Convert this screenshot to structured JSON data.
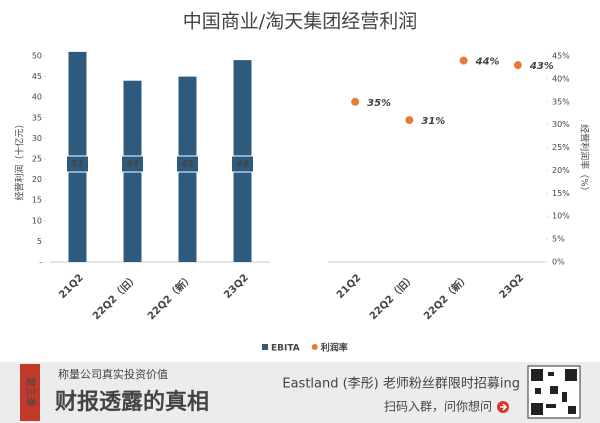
{
  "chart_data": [
    {
      "type": "bar",
      "title": "中国商业/淘天集团经营利润",
      "y_label": "经营利润（十亿元）",
      "categories": [
        "21Q2",
        "22Q2（旧）",
        "22Q2（新）",
        "23Q2"
      ],
      "series": [
        {
          "name": "EBITA",
          "color": "#2e5a7e",
          "values": [
            51,
            44,
            45,
            49
          ]
        }
      ],
      "ylim": [
        0,
        50
      ],
      "yticks": [
        {
          "value": 0,
          "label": "-"
        },
        5,
        10,
        15,
        20,
        25,
        30,
        35,
        40,
        45,
        50
      ]
    },
    {
      "type": "scatter",
      "y_label": "经营利润率（%）",
      "categories": [
        "21Q2",
        "22Q2（旧）",
        "22Q2（新）",
        "23Q2"
      ],
      "series": [
        {
          "name": "利润率",
          "color": "#e57c35",
          "values": [
            35,
            31,
            44,
            43
          ],
          "value_labels": [
            "35%",
            "31%",
            "44%",
            "43%"
          ]
        }
      ],
      "ylim": [
        0,
        45
      ],
      "yticks": [
        {
          "value": 0,
          "label": "0%"
        },
        {
          "value": 5,
          "label": "5%"
        },
        {
          "value": 10,
          "label": "10%"
        },
        {
          "value": 15,
          "label": "15%"
        },
        {
          "value": 20,
          "label": "20%"
        },
        {
          "value": 25,
          "label": "25%"
        },
        {
          "value": 30,
          "label": "30%"
        },
        {
          "value": 35,
          "label": "35%"
        },
        {
          "value": 40,
          "label": "40%"
        },
        {
          "value": 45,
          "label": "45%"
        }
      ]
    }
  ],
  "footer": {
    "badge": "第三季",
    "slogan": "称量公司真实投资价值",
    "headline": "财报透露的真相",
    "promo": "Eastland (李彤) 老师粉丝群限时招募ing",
    "cta": "扫码入群，问你想问"
  }
}
